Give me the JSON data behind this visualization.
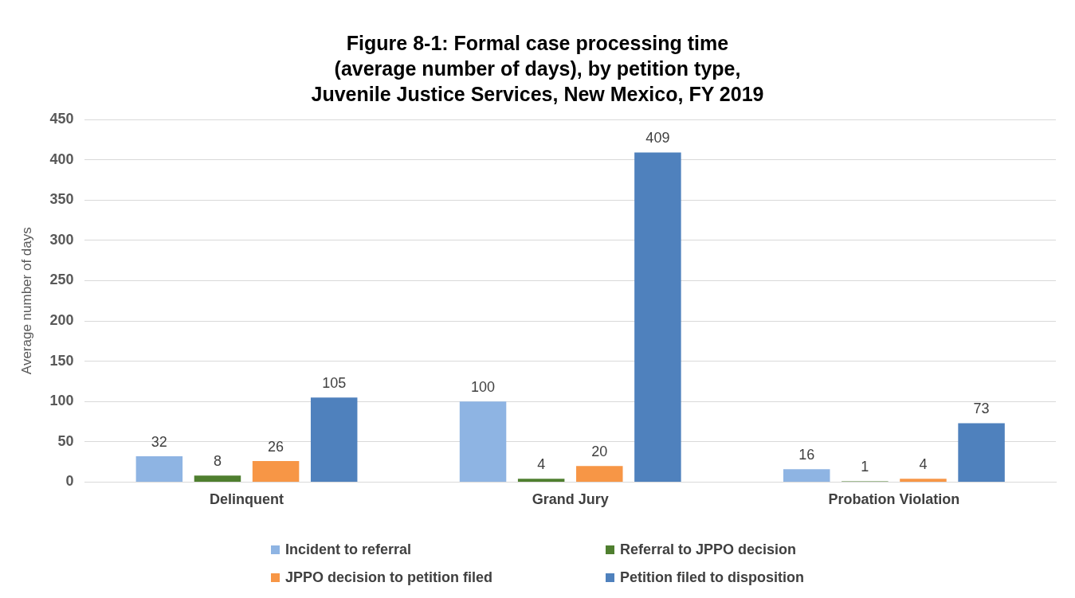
{
  "chart_data": {
    "type": "bar",
    "title": "Figure 8-1: Formal case processing time\n(average number of days), by petition type,\nJuvenile Justice Services, New Mexico, FY 2019",
    "ylabel": "Average number of days",
    "categories": [
      "Delinquent",
      "Grand Jury",
      "Probation Violation"
    ],
    "series": [
      {
        "name": "Incident to referral",
        "color": "#8eb4e3",
        "values": [
          32,
          100,
          16
        ]
      },
      {
        "name": "Referral to JPPO decision",
        "color": "#4f7f2f",
        "values": [
          8,
          4,
          1
        ]
      },
      {
        "name": "JPPO decision to petition filed",
        "color": "#f79646",
        "values": [
          26,
          20,
          4
        ]
      },
      {
        "name": "Petition filed to disposition",
        "color": "#4f81bd",
        "values": [
          105,
          409,
          73
        ]
      }
    ],
    "ylim": [
      0,
      450
    ],
    "yticks": [
      0,
      50,
      100,
      150,
      200,
      250,
      300,
      350,
      400,
      450
    ],
    "grid": "y",
    "legend": "bottom",
    "data_labels": true
  }
}
